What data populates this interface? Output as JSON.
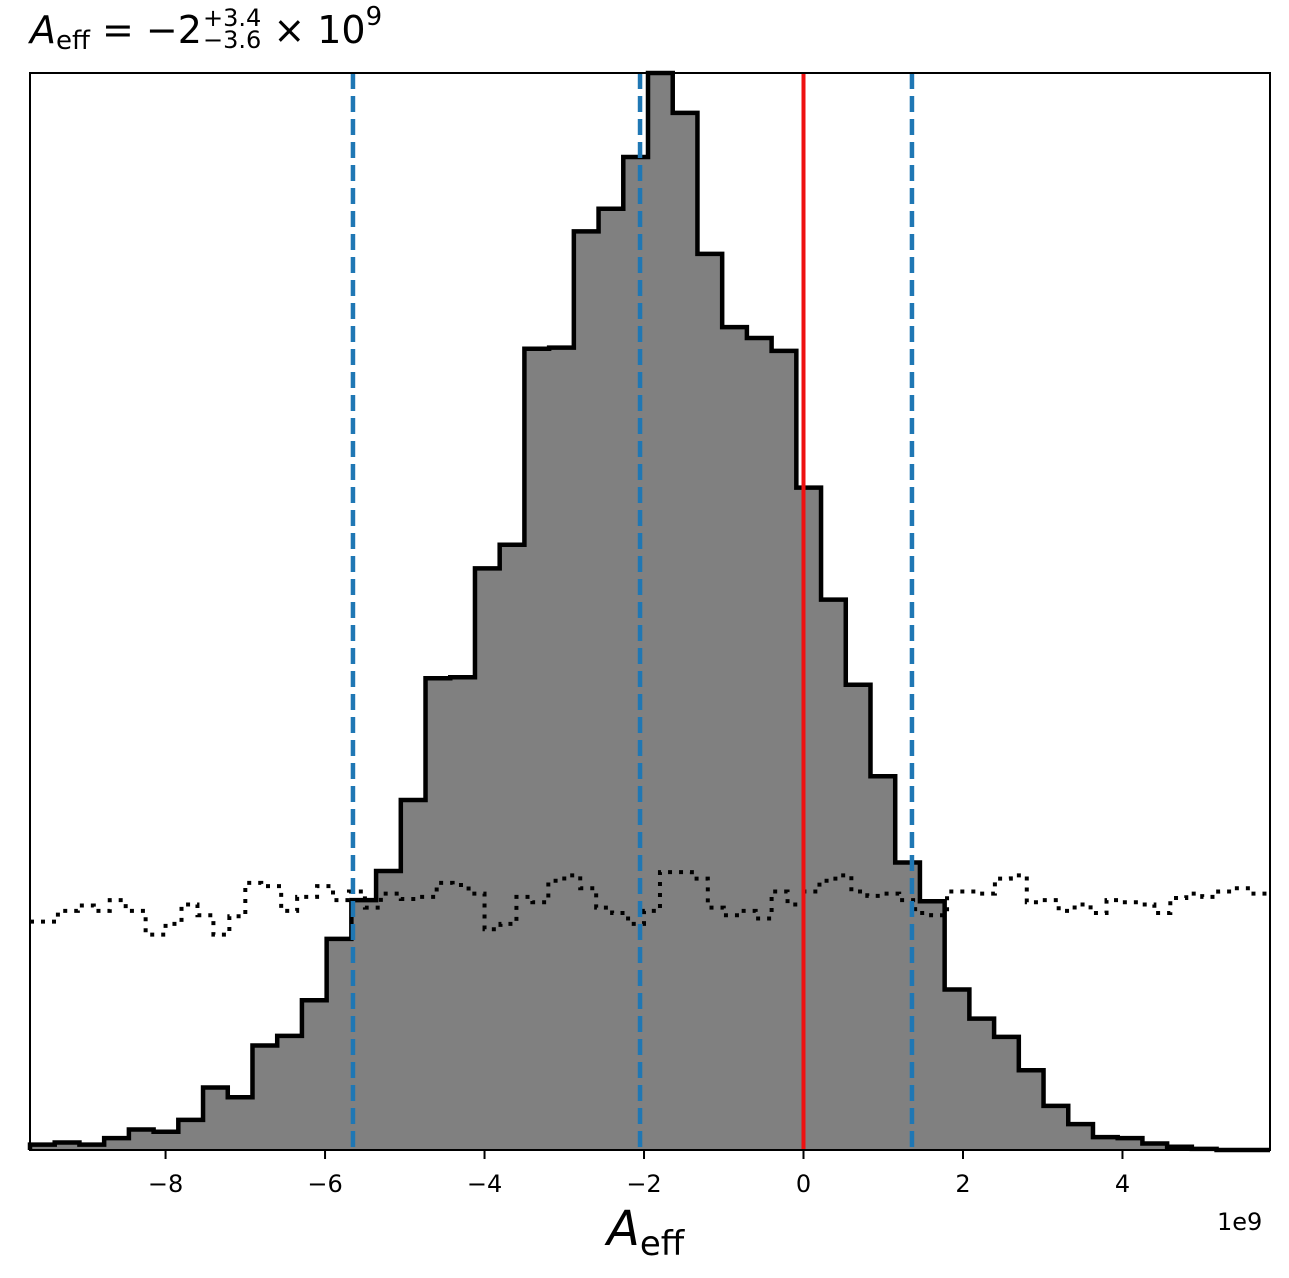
{
  "chart_data": {
    "type": "histogram",
    "title": {
      "symbol": "A",
      "subscript": "eff",
      "equals": "= −2",
      "sup": "+3.4",
      "sub": "−3.6",
      "times": "× 10",
      "exp": "9"
    },
    "xlabel": {
      "symbol": "A",
      "subscript": "eff"
    },
    "x_offset_label": "1e9",
    "xlim": [
      -9.7,
      5.85
    ],
    "ylim": [
      0,
      1.0
    ],
    "xticks": [
      -8,
      -6,
      -4,
      -2,
      0,
      2,
      4
    ],
    "xtick_labels": [
      "−8",
      "−6",
      "−4",
      "−2",
      "0",
      "2",
      "4"
    ],
    "bin_edges": [
      -9.7,
      -9.39,
      -9.08,
      -8.77,
      -8.46,
      -8.15,
      -7.84,
      -7.53,
      -7.22,
      -6.91,
      -6.6,
      -6.29,
      -5.98,
      -5.67,
      -5.36,
      -5.05,
      -4.74,
      -4.43,
      -4.12,
      -3.81,
      -3.5,
      -3.19,
      -2.88,
      -2.57,
      -2.26,
      -1.95,
      -1.64,
      -1.33,
      -1.02,
      -0.71,
      -0.4,
      -0.09,
      0.22,
      0.53,
      0.84,
      1.15,
      1.46,
      1.77,
      2.08,
      2.39,
      2.7,
      3.01,
      3.32,
      3.63,
      3.94,
      4.25,
      4.56,
      4.87,
      5.18,
      5.49,
      5.85
    ],
    "counts": [
      0.005,
      0.007,
      0.005,
      0.011,
      0.019,
      0.017,
      0.028,
      0.058,
      0.049,
      0.097,
      0.106,
      0.139,
      0.196,
      0.232,
      0.259,
      0.325,
      0.438,
      0.439,
      0.54,
      0.562,
      0.744,
      0.745,
      0.853,
      0.874,
      0.922,
      1.0,
      0.963,
      0.832,
      0.764,
      0.754,
      0.742,
      0.615,
      0.511,
      0.432,
      0.347,
      0.267,
      0.231,
      0.149,
      0.122,
      0.105,
      0.074,
      0.041,
      0.024,
      0.012,
      0.011,
      0.006,
      0.003,
      0.001,
      0.0,
      0.0
    ],
    "prior": {
      "style": "dotted",
      "x": [
        -9.7,
        -9.55,
        -9.35,
        -9.1,
        -8.9,
        -8.7,
        -8.5,
        -8.25,
        -8.0,
        -7.8,
        -7.6,
        -7.4,
        -7.2,
        -7.0,
        -6.8,
        -6.55,
        -6.35,
        -6.1,
        -5.9,
        -5.7,
        -5.5,
        -5.3,
        -5.05,
        -4.85,
        -4.6,
        -4.4,
        -4.2,
        -4.0,
        -3.8,
        -3.6,
        -3.4,
        -3.2,
        -3.0,
        -2.8,
        -2.6,
        -2.4,
        -2.2,
        -2.0,
        -1.8,
        -1.6,
        -1.4,
        -1.2,
        -1.0,
        -0.8,
        -0.6,
        -0.4,
        -0.2,
        0.0,
        0.2,
        0.4,
        0.6,
        0.8,
        1.0,
        1.2,
        1.4,
        1.6,
        1.8,
        2.0,
        2.2,
        2.4,
        2.6,
        2.8,
        3.0,
        3.2,
        3.4,
        3.6,
        3.8,
        4.0,
        4.2,
        4.4,
        4.6,
        4.8,
        5.0,
        5.2,
        5.4,
        5.6,
        5.85
      ],
      "y": [
        0.212,
        0.212,
        0.222,
        0.227,
        0.222,
        0.232,
        0.222,
        0.2,
        0.21,
        0.228,
        0.218,
        0.2,
        0.217,
        0.248,
        0.245,
        0.222,
        0.235,
        0.245,
        0.232,
        0.24,
        0.225,
        0.238,
        0.233,
        0.235,
        0.248,
        0.246,
        0.238,
        0.205,
        0.21,
        0.235,
        0.23,
        0.25,
        0.255,
        0.243,
        0.225,
        0.22,
        0.21,
        0.222,
        0.258,
        0.258,
        0.252,
        0.225,
        0.218,
        0.222,
        0.215,
        0.24,
        0.228,
        0.24,
        0.25,
        0.255,
        0.24,
        0.236,
        0.238,
        0.232,
        0.22,
        0.218,
        0.24,
        0.24,
        0.238,
        0.252,
        0.255,
        0.23,
        0.232,
        0.222,
        0.228,
        0.22,
        0.232,
        0.23,
        0.228,
        0.22,
        0.234,
        0.238,
        0.235,
        0.24,
        0.243,
        0.238,
        0.238
      ]
    },
    "vlines": [
      {
        "x": -5.65,
        "color": "#1f77b4",
        "style": "dashed",
        "role": "lower bound"
      },
      {
        "x": -2.05,
        "color": "#1f77b4",
        "style": "dashed",
        "role": "median"
      },
      {
        "x": 1.36,
        "color": "#1f77b4",
        "style": "dashed",
        "role": "upper bound"
      },
      {
        "x": 0.0,
        "color": "#ee1111",
        "style": "solid",
        "role": "true value"
      }
    ],
    "colors": {
      "fill": "#808080",
      "edge": "#000000",
      "quantile": "#1f77b4",
      "truth": "#ee1111"
    },
    "grid": false,
    "legend": "none"
  }
}
